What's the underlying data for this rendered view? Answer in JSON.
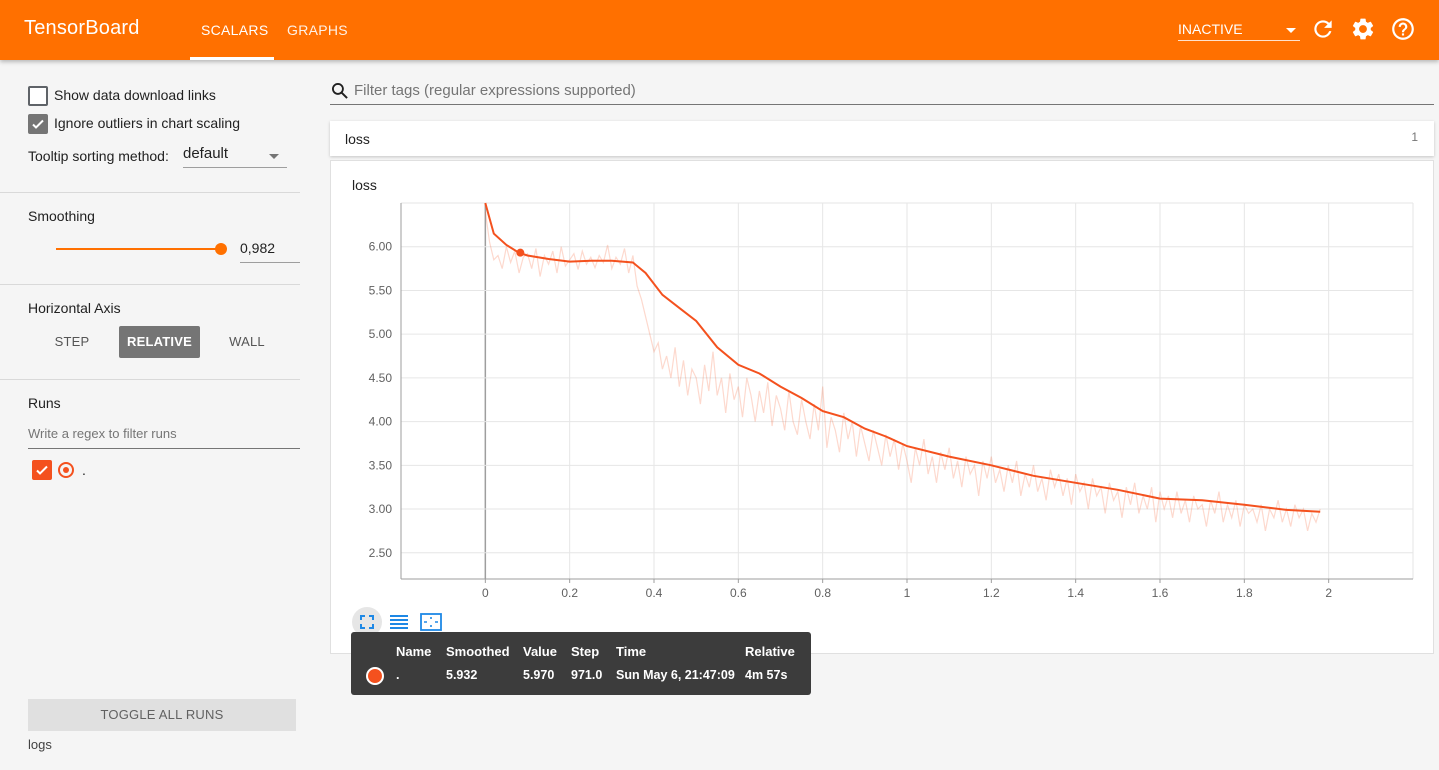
{
  "header": {
    "brand": "TensorBoard",
    "tabs": [
      {
        "label": "SCALARS"
      },
      {
        "label": "GRAPHS"
      }
    ],
    "status_select": "INACTIVE"
  },
  "sidebar": {
    "show_download_links": {
      "label": "Show data download links",
      "checked": false
    },
    "ignore_outliers": {
      "label": "Ignore outliers in chart scaling",
      "checked": true
    },
    "tooltip_sorting": {
      "label": "Tooltip sorting method:",
      "value": "default"
    },
    "smoothing": {
      "label": "Smoothing",
      "value": "0,982",
      "fraction": 0.982
    },
    "horizontal_axis": {
      "label": "Horizontal Axis",
      "options": [
        "STEP",
        "RELATIVE",
        "WALL"
      ],
      "selected": "RELATIVE"
    },
    "runs": {
      "label": "Runs",
      "filter_placeholder": "Write a regex to filter runs",
      "items": [
        {
          "name": ".",
          "checked": true,
          "color": "#f4511e"
        }
      ]
    },
    "toggle_all_label": "TOGGLE ALL RUNS",
    "logdir": "logs"
  },
  "main": {
    "filter_placeholder": "Filter tags (regular expressions supported)",
    "category": {
      "name": "loss",
      "count": "1"
    },
    "card_title": "loss"
  },
  "tooltip": {
    "headers": [
      "Name",
      "Smoothed",
      "Value",
      "Step",
      "Time",
      "Relative"
    ],
    "row": {
      "name": ".",
      "smoothed": "5.932",
      "value": "5.970",
      "step": "971.0",
      "time": "Sun May 6, 21:47:09",
      "relative": "4m 57s"
    }
  },
  "colors": {
    "accent": "#ff7000",
    "run": "#f4511e"
  },
  "chart_data": {
    "type": "line",
    "title": "loss",
    "xlabel": "",
    "ylabel": "",
    "xlim": [
      -0.2,
      2.2
    ],
    "ylim": [
      2.2,
      6.5
    ],
    "x_ticks": [
      "0",
      "0.2",
      "0.4",
      "0.6",
      "0.8",
      "1",
      "1.2",
      "1.4",
      "1.6",
      "1.8",
      "2"
    ],
    "y_ticks": [
      "2.50",
      "3.00",
      "3.50",
      "4.00",
      "4.50",
      "5.00",
      "5.50",
      "6.00"
    ],
    "grid": true,
    "highlight_point": {
      "x": 0.083,
      "y": 5.932
    },
    "series": [
      {
        "kind": "smoothed",
        "x": [
          0.0,
          0.02,
          0.05,
          0.08,
          0.1,
          0.15,
          0.2,
          0.25,
          0.3,
          0.35,
          0.38,
          0.42,
          0.46,
          0.5,
          0.55,
          0.6,
          0.65,
          0.7,
          0.75,
          0.8,
          0.85,
          0.9,
          0.95,
          1.0,
          1.1,
          1.2,
          1.3,
          1.4,
          1.5,
          1.6,
          1.7,
          1.8,
          1.9,
          1.98
        ],
        "y": [
          6.5,
          6.15,
          6.02,
          5.93,
          5.9,
          5.86,
          5.83,
          5.84,
          5.84,
          5.82,
          5.7,
          5.45,
          5.3,
          5.15,
          4.85,
          4.65,
          4.55,
          4.4,
          4.27,
          4.12,
          4.05,
          3.92,
          3.83,
          3.72,
          3.6,
          3.5,
          3.38,
          3.3,
          3.22,
          3.12,
          3.1,
          3.05,
          2.99,
          2.97
        ]
      },
      {
        "kind": "raw",
        "x": [
          0.0,
          0.01,
          0.02,
          0.03,
          0.04,
          0.05,
          0.06,
          0.07,
          0.08,
          0.09,
          0.1,
          0.11,
          0.12,
          0.13,
          0.14,
          0.15,
          0.16,
          0.17,
          0.18,
          0.19,
          0.2,
          0.21,
          0.22,
          0.23,
          0.24,
          0.25,
          0.26,
          0.27,
          0.28,
          0.29,
          0.3,
          0.31,
          0.32,
          0.33,
          0.34,
          0.35,
          0.36,
          0.37,
          0.38,
          0.39,
          0.4,
          0.41,
          0.42,
          0.43,
          0.44,
          0.45,
          0.46,
          0.47,
          0.48,
          0.49,
          0.5,
          0.51,
          0.52,
          0.53,
          0.54,
          0.55,
          0.56,
          0.57,
          0.58,
          0.59,
          0.6,
          0.61,
          0.62,
          0.63,
          0.64,
          0.65,
          0.66,
          0.67,
          0.68,
          0.69,
          0.7,
          0.71,
          0.72,
          0.73,
          0.74,
          0.75,
          0.76,
          0.77,
          0.78,
          0.79,
          0.8,
          0.81,
          0.82,
          0.83,
          0.84,
          0.85,
          0.86,
          0.87,
          0.88,
          0.89,
          0.9,
          0.91,
          0.92,
          0.93,
          0.94,
          0.95,
          0.96,
          0.97,
          0.98,
          0.99,
          1.0,
          1.01,
          1.02,
          1.03,
          1.04,
          1.05,
          1.06,
          1.07,
          1.08,
          1.09,
          1.1,
          1.11,
          1.12,
          1.13,
          1.14,
          1.15,
          1.16,
          1.17,
          1.18,
          1.19,
          1.2,
          1.21,
          1.22,
          1.23,
          1.24,
          1.25,
          1.26,
          1.27,
          1.28,
          1.29,
          1.3,
          1.31,
          1.32,
          1.33,
          1.34,
          1.35,
          1.36,
          1.37,
          1.38,
          1.39,
          1.4,
          1.41,
          1.42,
          1.43,
          1.44,
          1.45,
          1.46,
          1.47,
          1.48,
          1.49,
          1.5,
          1.51,
          1.52,
          1.53,
          1.54,
          1.55,
          1.56,
          1.57,
          1.58,
          1.59,
          1.6,
          1.61,
          1.62,
          1.63,
          1.64,
          1.65,
          1.66,
          1.67,
          1.68,
          1.69,
          1.7,
          1.71,
          1.72,
          1.73,
          1.74,
          1.75,
          1.76,
          1.77,
          1.78,
          1.79,
          1.8,
          1.81,
          1.82,
          1.83,
          1.84,
          1.85,
          1.86,
          1.87,
          1.88,
          1.89,
          1.9,
          1.91,
          1.92,
          1.93,
          1.94,
          1.95,
          1.96,
          1.97,
          1.98
        ],
        "y": [
          6.4,
          6.05,
          5.85,
          5.9,
          5.75,
          6.0,
          5.82,
          5.95,
          5.7,
          5.88,
          5.92,
          5.75,
          5.98,
          5.66,
          5.9,
          5.8,
          5.95,
          5.7,
          6.0,
          5.78,
          5.85,
          5.92,
          5.74,
          5.95,
          5.8,
          5.88,
          5.76,
          5.9,
          5.82,
          6.02,
          5.75,
          5.88,
          5.8,
          5.98,
          5.7,
          5.9,
          5.55,
          5.4,
          5.2,
          5.0,
          4.8,
          4.9,
          4.6,
          4.75,
          4.5,
          4.85,
          4.4,
          4.7,
          4.3,
          4.6,
          4.5,
          4.2,
          4.65,
          4.35,
          4.8,
          4.3,
          4.5,
          4.1,
          4.55,
          4.25,
          4.4,
          4.05,
          4.5,
          4.3,
          4.0,
          4.35,
          4.1,
          4.45,
          3.95,
          4.3,
          4.15,
          3.9,
          4.35,
          4.0,
          3.85,
          4.25,
          4.0,
          3.8,
          4.2,
          3.9,
          4.4,
          3.7,
          4.05,
          3.9,
          3.65,
          4.1,
          3.8,
          4.0,
          3.6,
          3.95,
          3.75,
          3.55,
          3.9,
          3.7,
          3.5,
          3.85,
          3.6,
          3.8,
          3.45,
          3.75,
          3.55,
          3.3,
          3.7,
          3.5,
          3.8,
          3.4,
          3.6,
          3.3,
          3.65,
          3.45,
          3.7,
          3.35,
          3.55,
          3.25,
          3.6,
          3.4,
          3.5,
          3.15,
          3.55,
          3.35,
          3.6,
          3.3,
          3.45,
          3.2,
          3.5,
          3.3,
          3.55,
          3.15,
          3.4,
          3.25,
          3.5,
          3.2,
          3.35,
          3.1,
          3.45,
          3.25,
          3.4,
          3.15,
          3.35,
          3.05,
          3.4,
          3.2,
          3.3,
          3.0,
          3.35,
          3.15,
          3.25,
          2.95,
          3.3,
          3.1,
          3.2,
          2.9,
          3.25,
          3.05,
          3.3,
          2.95,
          3.15,
          3.0,
          3.25,
          2.85,
          3.2,
          3.0,
          3.15,
          2.9,
          3.2,
          2.95,
          3.1,
          2.85,
          3.15,
          3.0,
          3.05,
          2.8,
          3.1,
          2.95,
          3.2,
          2.85,
          3.05,
          2.9,
          3.1,
          2.8,
          3.05,
          2.95,
          3.0,
          2.85,
          3.05,
          2.75,
          3.0,
          2.9,
          3.1,
          2.85,
          3.0,
          2.8,
          3.05,
          2.9,
          3.0,
          2.75,
          2.95,
          2.85,
          3.0
        ]
      }
    ]
  }
}
